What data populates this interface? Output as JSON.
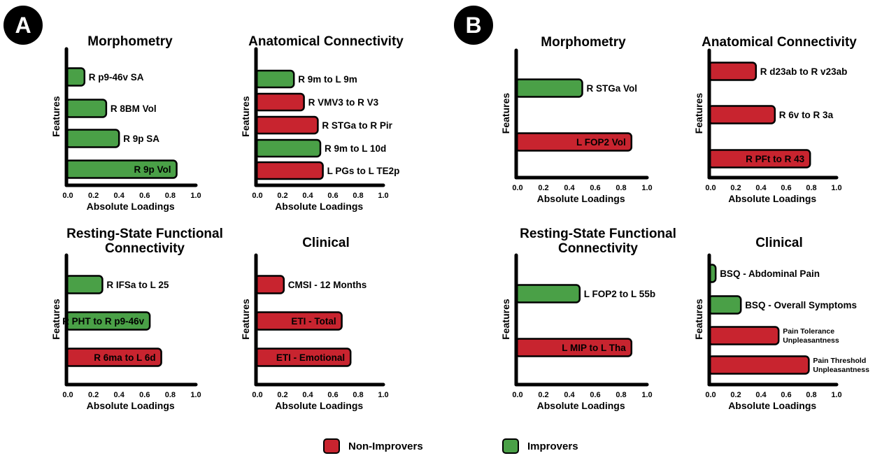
{
  "panels": [
    {
      "label": "A"
    },
    {
      "label": "B"
    }
  ],
  "colors": {
    "improver": "#4aa047",
    "non_improver": "#c8242f",
    "axis": "#000000"
  },
  "legend": {
    "non_improvers": "Non-Improvers",
    "improvers": "Improvers"
  },
  "chart_data": [
    {
      "panel": "A",
      "type": "bar",
      "orientation": "horizontal",
      "title": [
        "Morphometry"
      ],
      "xlabel": "Absolute Loadings",
      "ylabel": "Features",
      "xlim": [
        0,
        1.0
      ],
      "xticks": [
        "0.0",
        "0.2",
        "0.4",
        "0.6",
        "0.8",
        "1.0"
      ],
      "bars": [
        {
          "label": "R p9-46v SA",
          "value": 0.13,
          "group": "improver"
        },
        {
          "label": "R 8BM Vol",
          "value": 0.3,
          "group": "improver"
        },
        {
          "label": "R 9p SA",
          "value": 0.4,
          "group": "improver"
        },
        {
          "label": "R 9p Vol",
          "value": 0.85,
          "group": "improver"
        }
      ]
    },
    {
      "panel": "A",
      "type": "bar",
      "orientation": "horizontal",
      "title": [
        "Anatomical Connectivity"
      ],
      "xlabel": "Absolute Loadings",
      "ylabel": "Features",
      "xlim": [
        0,
        1.0
      ],
      "xticks": [
        "0.0",
        "0.2",
        "0.4",
        "0.6",
        "0.8",
        "1.0"
      ],
      "bars": [
        {
          "label": "R 9m to L 9m",
          "value": 0.29,
          "group": "improver"
        },
        {
          "label": "R VMV3 to R V3",
          "value": 0.37,
          "group": "non_improver"
        },
        {
          "label": "R STGa to R Pir",
          "value": 0.48,
          "group": "non_improver"
        },
        {
          "label": "R 9m to L 10d",
          "value": 0.5,
          "group": "improver"
        },
        {
          "label": "L PGs to L TE2p",
          "value": 0.52,
          "group": "non_improver"
        }
      ]
    },
    {
      "panel": "A",
      "type": "bar",
      "orientation": "horizontal",
      "title": [
        "Resting-State Functional",
        "Connectivity"
      ],
      "xlabel": "Absolute Loadings",
      "ylabel": "Features",
      "xlim": [
        0,
        1.0
      ],
      "xticks": [
        "0.0",
        "0.2",
        "0.4",
        "0.6",
        "0.8",
        "1.0"
      ],
      "bars": [
        {
          "label": "R IFSa to L 25",
          "value": 0.27,
          "group": "improver"
        },
        {
          "label": "R PHT to R p9-46v",
          "value": 0.64,
          "group": "improver"
        },
        {
          "label": "R 6ma to L 6d",
          "value": 0.73,
          "group": "non_improver"
        }
      ]
    },
    {
      "panel": "A",
      "type": "bar",
      "orientation": "horizontal",
      "title": [
        "Clinical"
      ],
      "xlabel": "Absolute Loadings",
      "ylabel": "Features",
      "xlim": [
        0,
        1.0
      ],
      "xticks": [
        "0.0",
        "0.2",
        "0.4",
        "0.6",
        "0.8",
        "1.0"
      ],
      "bars": [
        {
          "label": "CMSI - 12 Months",
          "value": 0.21,
          "group": "non_improver"
        },
        {
          "label": "ETI - Total",
          "value": 0.67,
          "group": "non_improver"
        },
        {
          "label": "ETI - Emotional",
          "value": 0.74,
          "group": "non_improver"
        }
      ]
    },
    {
      "panel": "B",
      "type": "bar",
      "orientation": "horizontal",
      "title": [
        "Morphometry"
      ],
      "xlabel": "Absolute Loadings",
      "ylabel": "Features",
      "xlim": [
        0,
        1.0
      ],
      "xticks": [
        "0.0",
        "0.2",
        "0.4",
        "0.6",
        "0.8",
        "1.0"
      ],
      "bars": [
        {
          "label": "R STGa Vol",
          "value": 0.5,
          "group": "improver"
        },
        {
          "label": "L FOP2 Vol",
          "value": 0.88,
          "group": "non_improver"
        }
      ]
    },
    {
      "panel": "B",
      "type": "bar",
      "orientation": "horizontal",
      "title": [
        "Anatomical Connectivity"
      ],
      "xlabel": "Absolute Loadings",
      "ylabel": "Features",
      "xlim": [
        0,
        1.0
      ],
      "xticks": [
        "0.0",
        "0.2",
        "0.4",
        "0.6",
        "0.8",
        "1.0"
      ],
      "bars": [
        {
          "label": "R d23ab to R v23ab",
          "value": 0.36,
          "group": "non_improver"
        },
        {
          "label": "R 6v to R 3a",
          "value": 0.51,
          "group": "non_improver"
        },
        {
          "label": "R PFt to R 43",
          "value": 0.79,
          "group": "non_improver"
        }
      ]
    },
    {
      "panel": "B",
      "type": "bar",
      "orientation": "horizontal",
      "title": [
        "Resting-State Functional",
        "Connectivity"
      ],
      "xlabel": "Absolute Loadings",
      "ylabel": "Features",
      "xlim": [
        0,
        1.0
      ],
      "xticks": [
        "0.0",
        "0.2",
        "0.4",
        "0.6",
        "0.8",
        "1.0"
      ],
      "bars": [
        {
          "label": "L FOP2 to L 55b",
          "value": 0.48,
          "group": "improver"
        },
        {
          "label": "L MIP to L Tha",
          "value": 0.88,
          "group": "non_improver"
        }
      ]
    },
    {
      "panel": "B",
      "type": "bar",
      "orientation": "horizontal",
      "title": [
        "Clinical"
      ],
      "xlabel": "Absolute Loadings",
      "ylabel": "Features",
      "xlim": [
        0,
        1.0
      ],
      "xticks": [
        "0.0",
        "0.2",
        "0.4",
        "0.6",
        "0.8",
        "1.0"
      ],
      "bars": [
        {
          "label": "BSQ - Abdominal Pain",
          "value": 0.04,
          "group": "improver"
        },
        {
          "label": "BSQ - Overall Symptoms",
          "value": 0.24,
          "group": "improver"
        },
        {
          "label": [
            "Pain Tolerance",
            "Unpleasantness"
          ],
          "value": 0.54,
          "group": "non_improver"
        },
        {
          "label": [
            "Pain Threshold",
            "Unpleasantness"
          ],
          "value": 0.78,
          "group": "non_improver"
        }
      ]
    }
  ]
}
